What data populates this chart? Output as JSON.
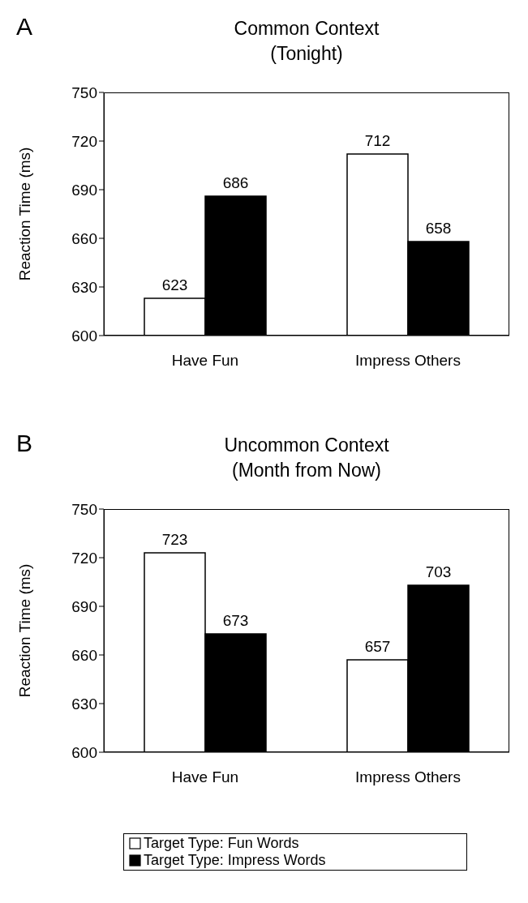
{
  "chart_data": [
    {
      "type": "bar",
      "title": "Common Context\n(Tonight)",
      "annotations": [
        "A"
      ],
      "ylabel": "Reaction Time (ms)",
      "categories": [
        "Have Fun",
        "Impress Others"
      ],
      "series": [
        {
          "color": "#ffffff",
          "values": [
            623,
            712
          ]
        },
        {
          "color": "#000000",
          "values": [
            686,
            658
          ]
        }
      ],
      "ylim": [
        600,
        750
      ],
      "yticks": [
        600,
        630,
        660,
        690,
        720,
        750
      ],
      "grid": false,
      "legend": false,
      "data_labels": true
    },
    {
      "type": "bar",
      "title": "Uncommon Context\n(Month from Now)",
      "annotations": [
        "B"
      ],
      "ylabel": "Reaction Time (ms)",
      "categories": [
        "Have Fun",
        "Impress Others"
      ],
      "series": [
        {
          "name": "Target Type: Fun Words",
          "color": "#ffffff",
          "values": [
            723,
            657
          ]
        },
        {
          "name": "Target Type: Impress Words",
          "color": "#000000",
          "values": [
            673,
            703
          ]
        }
      ],
      "ylim": [
        600,
        750
      ],
      "yticks": [
        600,
        630,
        660,
        690,
        720,
        750
      ],
      "grid": false,
      "legend": "bottom",
      "data_labels": true
    }
  ]
}
